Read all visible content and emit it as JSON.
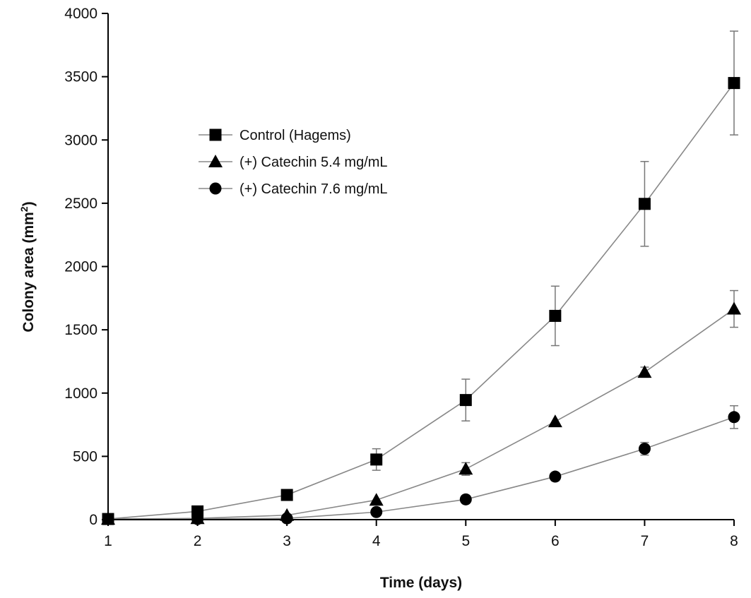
{
  "chart_data": {
    "type": "line",
    "title": "",
    "xlabel": "Time (days)",
    "ylabel_main": "Colony area (mm",
    "ylabel_sup": "2",
    "ylabel_tail": ")",
    "xlim": [
      1,
      8
    ],
    "ylim": [
      0,
      4000
    ],
    "x_ticks": [
      1,
      2,
      3,
      4,
      5,
      6,
      7,
      8
    ],
    "y_ticks": [
      0,
      500,
      1000,
      1500,
      2000,
      2500,
      3000,
      3500,
      4000
    ],
    "grid": false,
    "legend_position": "upper-left",
    "x": [
      1,
      2,
      3,
      4,
      5,
      6,
      7,
      8
    ],
    "series": [
      {
        "name": "Control  (Hagems)",
        "marker": "square",
        "values": [
          5,
          65,
          195,
          475,
          945,
          1610,
          2495,
          3450
        ],
        "error": [
          0,
          0,
          0,
          85,
          165,
          235,
          335,
          410
        ]
      },
      {
        "name": "(+) Catechin 5.4 mg/mL",
        "marker": "triangle",
        "values": [
          5,
          10,
          35,
          155,
          400,
          775,
          1165,
          1665
        ],
        "error": [
          0,
          0,
          0,
          0,
          50,
          0,
          40,
          145
        ]
      },
      {
        "name": "(+) Catechin 7.6 mg/mL",
        "marker": "circle",
        "values": [
          5,
          5,
          10,
          60,
          160,
          340,
          560,
          810
        ],
        "error": [
          0,
          0,
          0,
          0,
          0,
          0,
          50,
          90
        ]
      }
    ],
    "colors": {
      "line": "#888888",
      "marker": "#000000",
      "axis": "#000000",
      "errorbar": "#777777"
    }
  }
}
